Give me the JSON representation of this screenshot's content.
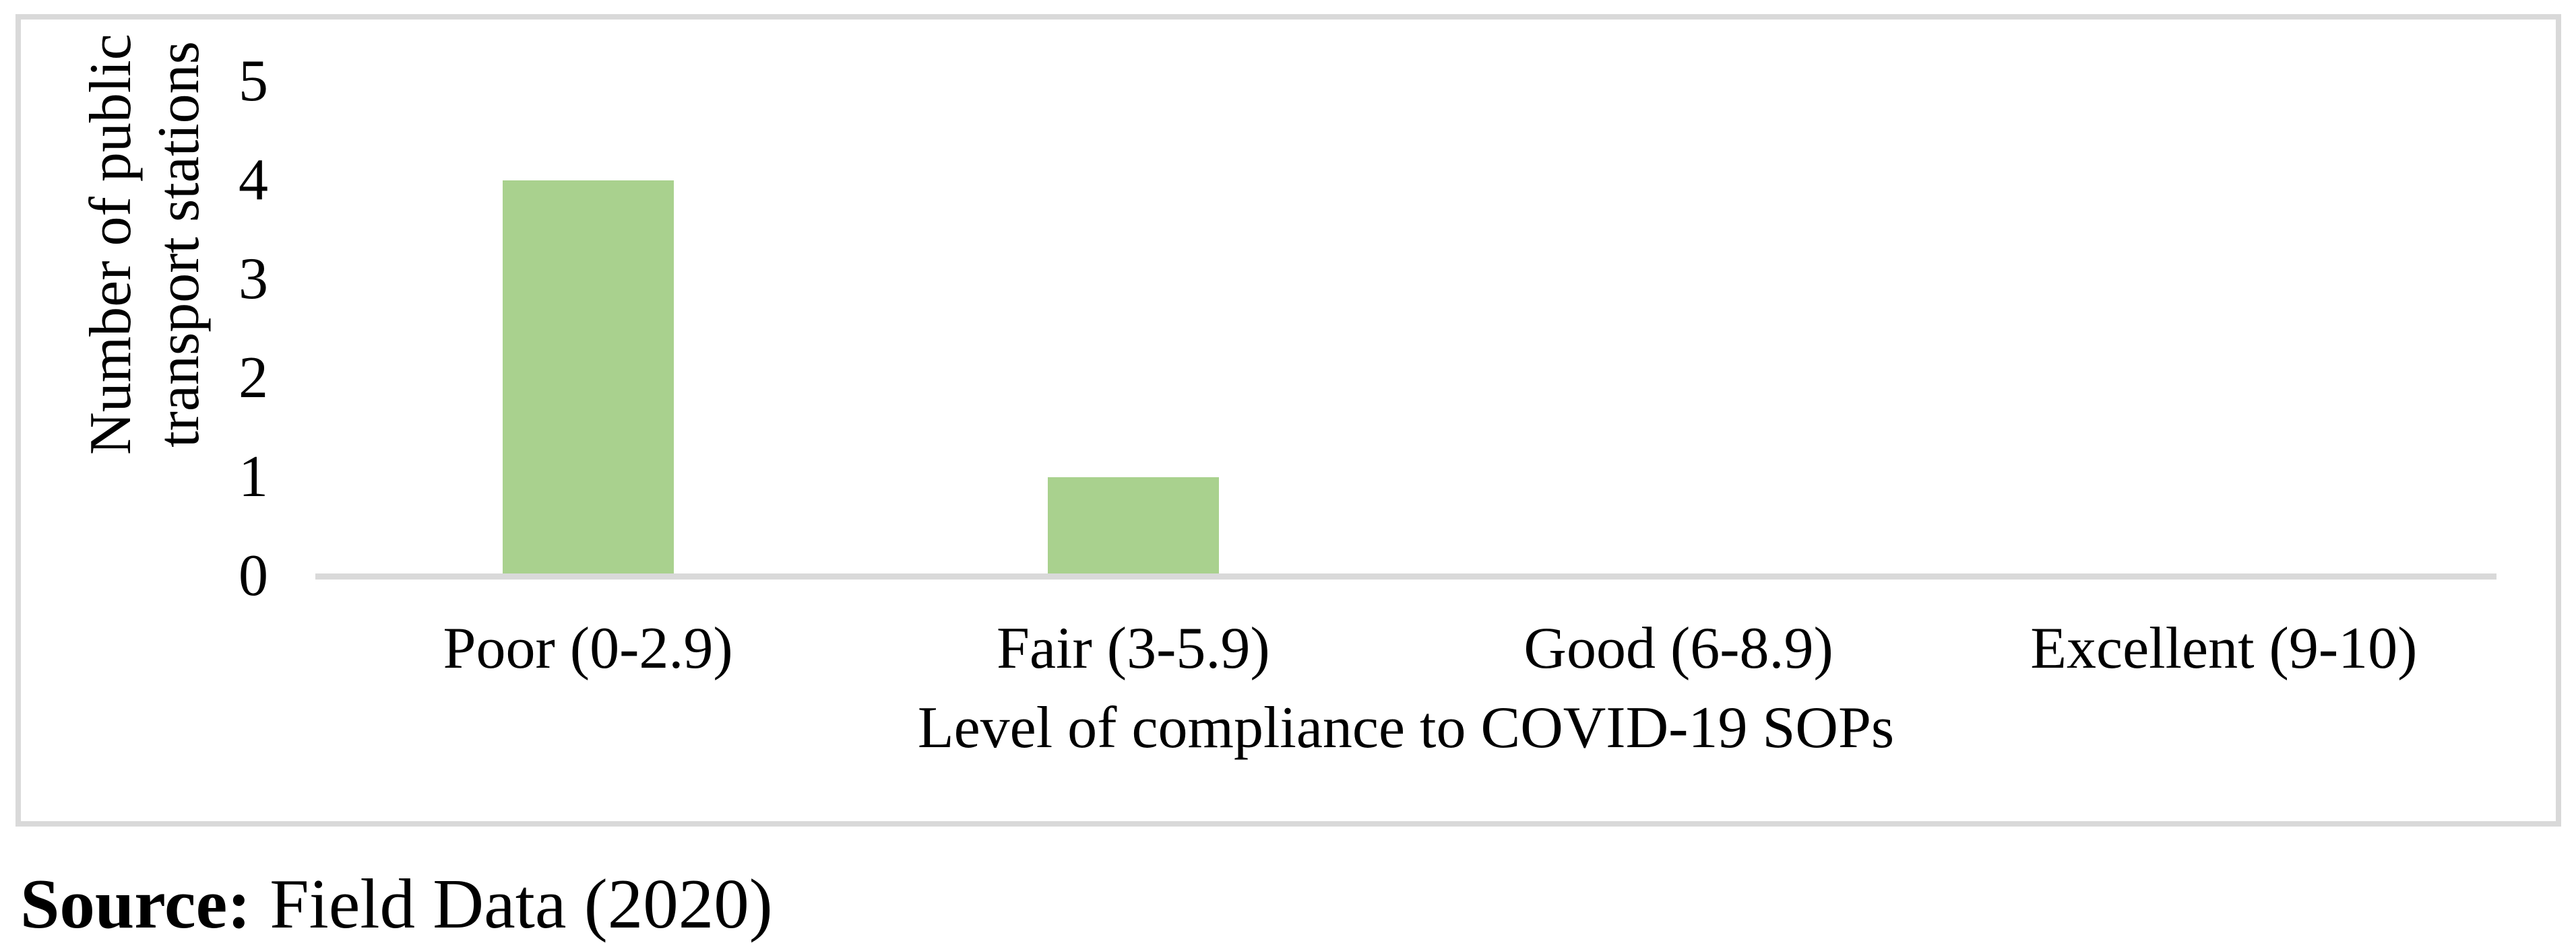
{
  "chart_data": {
    "type": "bar",
    "categories": [
      "Poor (0-2.9)",
      "Fair (3-5.9)",
      "Good (6-8.9)",
      "Excellent (9-10)"
    ],
    "values": [
      4,
      1,
      0,
      0
    ],
    "title": "",
    "xlabel": "Level of compliance to COVID-19 SOPs",
    "ylabel": "Number of public transport stations",
    "ylabel_lines": [
      "Number of public",
      "transport stations"
    ],
    "ylim": [
      0,
      5
    ],
    "yticks": [
      0,
      1,
      2,
      3,
      4,
      5
    ],
    "grid": false,
    "legend_position": "none",
    "bar_color": "#A9D18E",
    "axis_color": "#D9D9D9"
  },
  "caption": {
    "prefix": "Source:",
    "text": "Field Data (2020)"
  }
}
